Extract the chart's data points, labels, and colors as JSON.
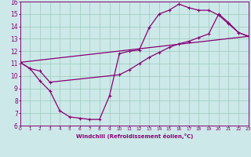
{
  "xlabel": "Windchill (Refroidissement éolien,°C)",
  "xlim": [
    0,
    23
  ],
  "ylim": [
    6,
    16
  ],
  "xticks": [
    0,
    1,
    2,
    3,
    4,
    5,
    6,
    7,
    8,
    9,
    10,
    11,
    12,
    13,
    14,
    15,
    16,
    17,
    18,
    19,
    20,
    21,
    22,
    23
  ],
  "yticks": [
    6,
    7,
    8,
    9,
    10,
    11,
    12,
    13,
    14,
    15,
    16
  ],
  "bg_color": "#cde8e8",
  "line_color": "#880077",
  "grid_color": "#99ccbb",
  "curve1_x": [
    0,
    1,
    2,
    3,
    4,
    5,
    6,
    7,
    8,
    9,
    10,
    11,
    12,
    13,
    14,
    15,
    16,
    17,
    18,
    19,
    20,
    21,
    22,
    23
  ],
  "curve1_y": [
    11.1,
    10.6,
    9.6,
    8.8,
    7.2,
    6.7,
    6.6,
    6.5,
    6.5,
    8.4,
    11.8,
    12.0,
    12.1,
    13.9,
    15.0,
    15.3,
    15.8,
    15.5,
    15.3,
    15.3,
    14.9,
    14.2,
    13.5,
    13.2
  ],
  "curve2_x": [
    0,
    1,
    2,
    3,
    10,
    11,
    12,
    13,
    14,
    15,
    16,
    17,
    18,
    19,
    20,
    21,
    22,
    23
  ],
  "curve2_y": [
    11.1,
    10.6,
    10.4,
    9.5,
    10.1,
    10.5,
    11.0,
    11.5,
    11.9,
    12.3,
    12.6,
    12.8,
    13.1,
    13.4,
    15.0,
    14.3,
    13.5,
    13.2
  ],
  "curve3_x": [
    0,
    23
  ],
  "curve3_y": [
    11.1,
    13.2
  ]
}
